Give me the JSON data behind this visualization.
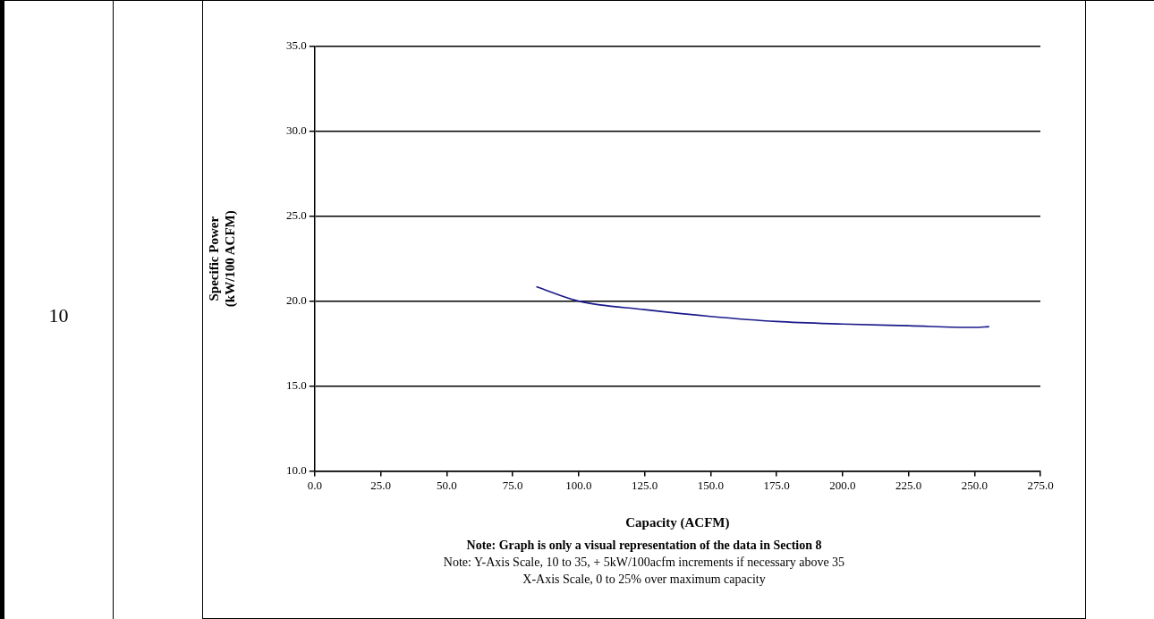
{
  "chart_data": {
    "type": "line",
    "xlabel": "Capacity (ACFM)",
    "ylabel": "Specific Power\n(kW/100 ACFM)",
    "x": [
      84,
      100,
      125,
      150,
      175,
      200,
      225,
      250,
      255.6
    ],
    "series": [
      {
        "color": "#1a1a8c",
        "values": [
          20.85,
          20.0,
          19.5,
          19.1,
          18.8,
          18.65,
          18.55,
          18.45,
          18.5
        ]
      }
    ],
    "xlim": [
      0,
      275
    ],
    "xticks": [
      {
        "value": 0,
        "label": "0.0"
      },
      {
        "value": 25,
        "label": "25.0"
      },
      {
        "value": 50,
        "label": "50.0"
      },
      {
        "value": 75,
        "label": "75.0"
      },
      {
        "value": 100,
        "label": "100.0"
      },
      {
        "value": 125,
        "label": "125.0"
      },
      {
        "value": 150,
        "label": "150.0"
      },
      {
        "value": 175,
        "label": "175.0"
      },
      {
        "value": 200,
        "label": "200.0"
      },
      {
        "value": 225,
        "label": "225.0"
      },
      {
        "value": 250,
        "label": "250.0"
      },
      {
        "value": 275,
        "label": "275.0"
      }
    ],
    "ylim": [
      10,
      35
    ],
    "yticks": [
      {
        "value": 10,
        "label": "10.0"
      },
      {
        "value": 15,
        "label": "15.0"
      },
      {
        "value": 20,
        "label": "20.0"
      },
      {
        "value": 25,
        "label": "25.0"
      },
      {
        "value": 30,
        "label": "30.0"
      },
      {
        "value": 35,
        "label": "35.0"
      }
    ],
    "grid": "y",
    "legend": false,
    "marker": "none",
    "line_style": "solid",
    "annotations": [
      "10",
      "Note:  Graph is only a visual representation of the data in Section 8",
      "Note:  Y-Axis Scale, 10 to 35, + 5kW/100acfm increments if necessary above 35",
      "X-Axis Scale, 0 to 25% over maximum capacity"
    ]
  }
}
